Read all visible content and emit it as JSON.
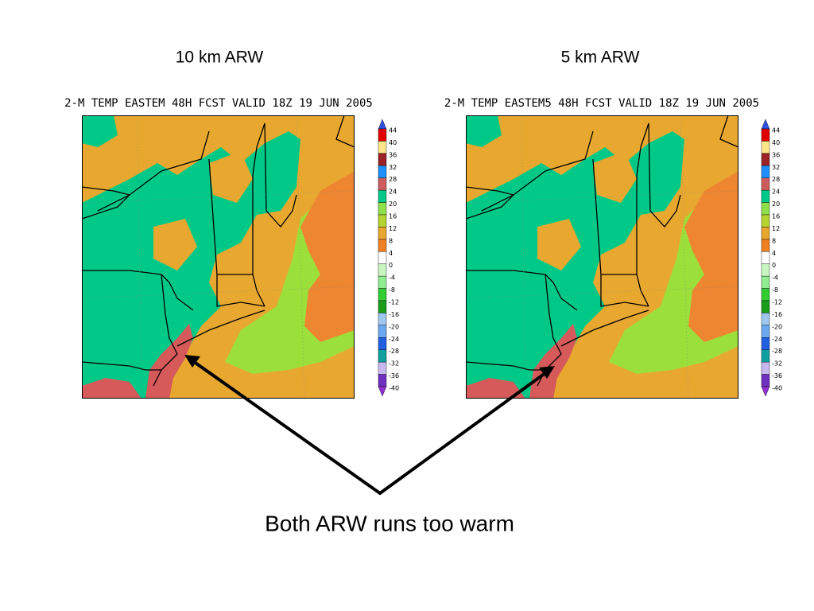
{
  "slide": {
    "panels": [
      {
        "title": "10 km ARW",
        "header": "2-M TEMP EASTEM 48H FCST VALID 18Z 19 JUN 2005",
        "colorbar": {
          "levels": [
            44,
            40,
            36,
            32,
            28,
            24,
            20,
            16,
            12,
            8,
            4,
            0,
            -4,
            -8,
            -12,
            -16,
            -20,
            -24,
            -28,
            -32,
            -36,
            -40
          ]
        }
      },
      {
        "title": "5 km ARW",
        "header": "2-M TEMP EASTEM5 48H FCST VALID 18Z 19 JUN 2005",
        "colorbar": {
          "levels": [
            44,
            40,
            36,
            32,
            28,
            24,
            20,
            16,
            12,
            8,
            4,
            0,
            -4,
            -8,
            -12,
            -16,
            -20,
            -24,
            -28,
            -32,
            -36,
            -40
          ]
        }
      }
    ],
    "colorbar_colors": [
      "#3050e0",
      "#e00000",
      "#fde68a",
      "#9b2226",
      "#1e90ff",
      "#cd5c5c",
      "#00c987",
      "#8fe04b",
      "#b5d330",
      "#e8a830",
      "#f08020",
      "#ffffff",
      "#c8f5c0",
      "#90ee90",
      "#32cd32",
      "#1a9e1a",
      "#9ec8f0",
      "#6aa8f0",
      "#2060e0",
      "#10a0a0",
      "#c8b8f0",
      "#7030c0",
      "#9030d0"
    ],
    "caption": "Both ARW runs too warm"
  }
}
